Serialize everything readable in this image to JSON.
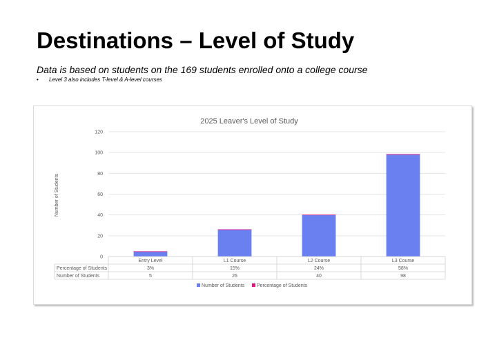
{
  "slide": {
    "title": "Destinations – Level of Study",
    "subtitle": "Data is based on students on the 169 students enrolled onto a college course",
    "note_bullet": "•",
    "note": "Level 3 also includes  T-level & A-level courses"
  },
  "colors": {
    "series_students": "#6a7ff0",
    "series_percentage": "#e2177e",
    "grid": "#e3e3e3",
    "text": "#595959"
  },
  "chart_data": {
    "type": "bar",
    "title": "2025 Leaver's Level of Study",
    "ylabel": "Number of Students",
    "xlabel": "",
    "ylim": [
      0,
      120
    ],
    "yticks": [
      0,
      20,
      40,
      60,
      80,
      100,
      120
    ],
    "categories": [
      "Entry Level",
      "L1 Course",
      "L2 Course",
      "L3 Course"
    ],
    "stacked": true,
    "series": [
      {
        "name": "Number of Students",
        "values": [
          5,
          26,
          40,
          98
        ]
      },
      {
        "name": "Percentage of Students",
        "values": [
          0.03,
          0.15,
          0.24,
          0.58
        ]
      }
    ],
    "data_table": {
      "rows": [
        {
          "name": "Percentage of Students",
          "cells": [
            "3%",
            "15%",
            "24%",
            "58%"
          ]
        },
        {
          "name": "Number of Students",
          "cells": [
            "5",
            "26",
            "40",
            "98"
          ]
        }
      ]
    },
    "legend": {
      "placement": "bottom",
      "entries": [
        "Number of Students",
        "Percentage of Students"
      ]
    },
    "grid": true
  }
}
